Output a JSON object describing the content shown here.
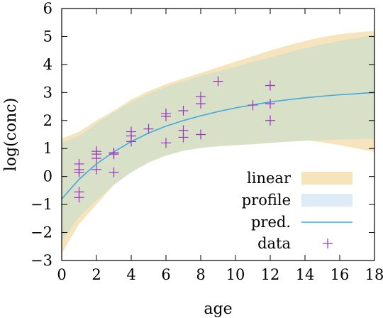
{
  "chart_data": {
    "type": "line",
    "title": "",
    "xlabel": "age",
    "ylabel": "log(conc)",
    "xlim": [
      0,
      18
    ],
    "ylim": [
      -3,
      6
    ],
    "xticks": [
      0,
      2,
      4,
      6,
      8,
      10,
      12,
      14,
      16,
      18
    ],
    "yticks": [
      -3,
      -2,
      -1,
      0,
      1,
      2,
      3,
      4,
      5,
      6
    ],
    "grid": false,
    "legend_position": "bottom-right",
    "legend": [
      "linear",
      "profile",
      "pred.",
      "data"
    ],
    "colors": {
      "linear": "#f5e4bc",
      "profile": "#dcebf5",
      "overlap": "#d8e0c8",
      "pred": "#44a8e0",
      "data": "#9a34c0"
    },
    "series": [
      {
        "name": "linear",
        "kind": "band",
        "x": [
          0,
          1,
          2,
          3,
          4,
          5,
          6,
          7,
          8,
          9,
          10,
          11,
          12,
          13,
          14,
          15,
          16,
          17,
          18
        ],
        "lower": [
          -2.75,
          -1.7,
          -1.0,
          -0.3,
          0.2,
          0.55,
          0.85,
          1.05,
          1.2,
          1.28,
          1.33,
          1.35,
          1.36,
          1.34,
          1.3,
          1.22,
          1.12,
          1.0,
          0.88
        ],
        "upper": [
          1.35,
          1.6,
          2.0,
          2.35,
          2.75,
          3.05,
          3.3,
          3.5,
          3.7,
          3.9,
          4.1,
          4.3,
          4.5,
          4.68,
          4.84,
          4.98,
          5.08,
          5.15,
          5.2
        ]
      },
      {
        "name": "profile",
        "kind": "band",
        "x": [
          0,
          1,
          2,
          3,
          4,
          5,
          6,
          7,
          8,
          9,
          10,
          11,
          12,
          13,
          14,
          15,
          16,
          17,
          18
        ],
        "lower": [
          -2.3,
          -1.45,
          -0.85,
          -0.3,
          0.15,
          0.5,
          0.75,
          0.92,
          1.02,
          1.08,
          1.12,
          1.15,
          1.2,
          1.24,
          1.28,
          1.3,
          1.32,
          1.34,
          1.35
        ],
        "upper": [
          1.2,
          1.45,
          1.9,
          2.3,
          2.65,
          2.95,
          3.2,
          3.4,
          3.6,
          3.75,
          3.92,
          4.1,
          4.25,
          4.42,
          4.58,
          4.72,
          4.84,
          4.95,
          5.05
        ]
      },
      {
        "name": "pred.",
        "kind": "line",
        "x": [
          0,
          1,
          2,
          3,
          4,
          5,
          6,
          7,
          8,
          9,
          10,
          11,
          12,
          13,
          14,
          15,
          16,
          17,
          18
        ],
        "y": [
          -0.8,
          -0.1,
          0.45,
          0.88,
          1.25,
          1.55,
          1.8,
          2.0,
          2.17,
          2.32,
          2.45,
          2.56,
          2.66,
          2.74,
          2.81,
          2.87,
          2.92,
          2.96,
          3.0
        ]
      },
      {
        "name": "data",
        "kind": "scatter",
        "x": [
          1,
          1,
          1,
          1,
          1,
          2,
          2,
          2,
          2,
          3,
          3,
          3,
          4,
          4,
          4,
          5,
          6,
          6,
          6,
          7,
          7,
          7,
          8,
          8,
          8,
          9,
          11,
          12,
          12,
          12
        ],
        "y": [
          0.45,
          0.25,
          0.15,
          -0.55,
          -0.75,
          0.9,
          0.8,
          0.65,
          0.25,
          0.85,
          0.8,
          0.15,
          1.6,
          1.45,
          1.25,
          1.7,
          2.25,
          2.15,
          1.2,
          2.35,
          1.65,
          1.4,
          2.85,
          2.6,
          1.5,
          3.4,
          2.55,
          3.25,
          2.6,
          2.0
        ]
      }
    ]
  }
}
